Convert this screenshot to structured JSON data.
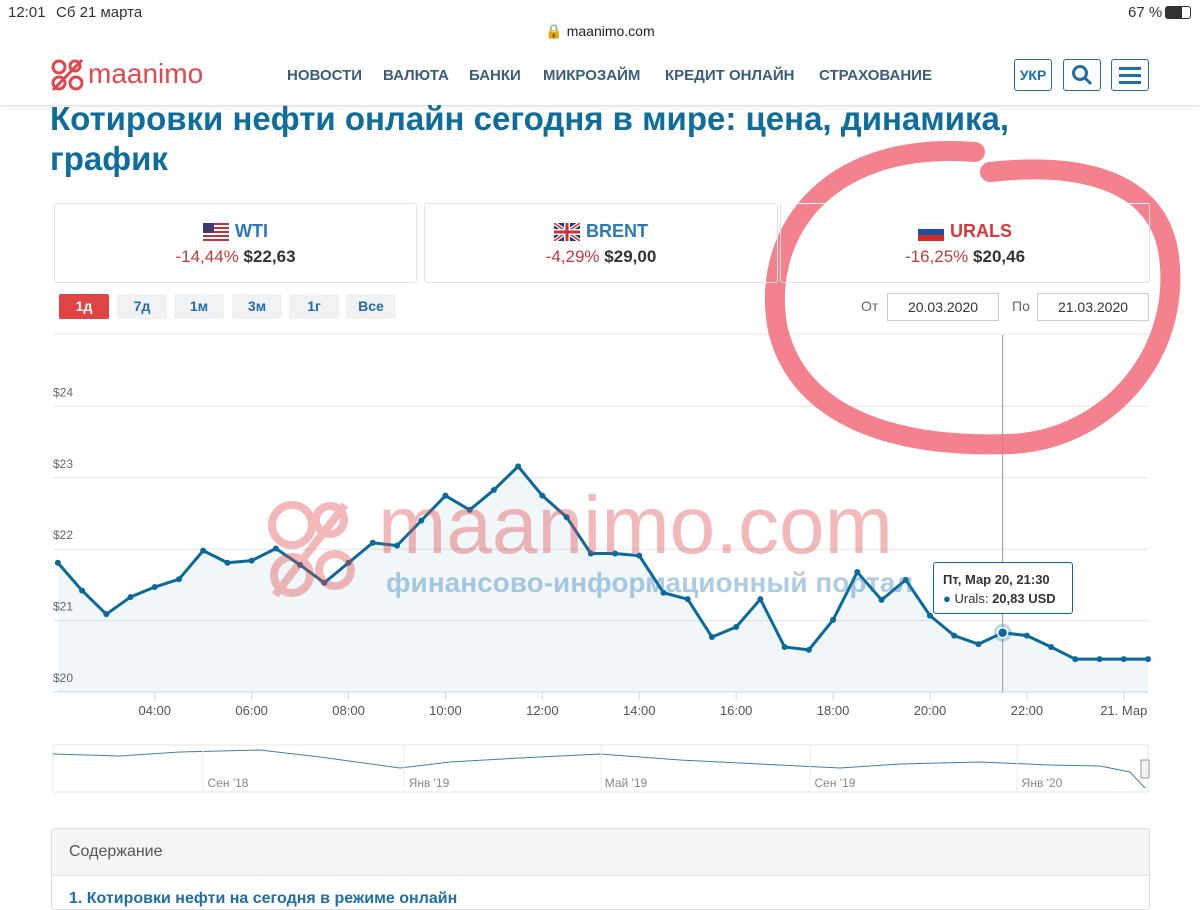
{
  "status_bar": {
    "time": "12:01",
    "date": "Сб 21 марта",
    "url": "maanimo.com",
    "battery": "67 %"
  },
  "header": {
    "logo": "maanimo",
    "nav": [
      "НОВОСТИ",
      "ВАЛЮТА",
      "БАНКИ",
      "МИКРОЗАЙМ",
      "КРЕДИТ ОНЛАЙН",
      "СТРАХОВАНИЕ"
    ],
    "lang": "УКР"
  },
  "title": "Котировки нефти онлайн сегодня в мире: цена, динамика, график",
  "quotes": [
    {
      "name": "WTI",
      "change": "-14,44%",
      "price": "$22,63"
    },
    {
      "name": "BRENT",
      "change": "-4,29%",
      "price": "$29,00"
    },
    {
      "name": "URALS",
      "change": "-16,25%",
      "price": "$20,46"
    }
  ],
  "ranges": [
    "1д",
    "7д",
    "1м",
    "3м",
    "1г",
    "Все"
  ],
  "date_from": {
    "label": "От",
    "value": "20.03.2020"
  },
  "date_to": {
    "label": "По",
    "value": "21.03.2020"
  },
  "chart": {
    "type": "line",
    "x": [
      2,
      2.5,
      3,
      3.5,
      4,
      4.5,
      5,
      5.5,
      6,
      6.5,
      7,
      7.5,
      8,
      8.5,
      9,
      9.5,
      10,
      10.5,
      11,
      11.5,
      12,
      12.5,
      13,
      13.5,
      14,
      14.5,
      15,
      15.5,
      16,
      16.5,
      17,
      17.5,
      18,
      18.5,
      19,
      19.5,
      20,
      20.5,
      21,
      21.5,
      22,
      22.5,
      23,
      23.5,
      24,
      24.5
    ],
    "series": [
      {
        "name": "Urals",
        "color": "#0b6a99",
        "values": [
          21.81,
          21.42,
          21.09,
          21.33,
          21.47,
          21.58,
          21.98,
          21.81,
          21.84,
          22.01,
          21.78,
          21.53,
          21.81,
          22.09,
          22.05,
          22.4,
          22.75,
          22.55,
          22.83,
          23.16,
          22.75,
          22.45,
          21.94,
          21.94,
          21.91,
          21.39,
          21.3,
          20.77,
          20.91,
          21.3,
          20.63,
          20.59,
          21.01,
          21.68,
          21.29,
          21.57,
          21.07,
          20.79,
          20.67,
          20.83,
          20.79,
          20.63,
          20.46,
          20.46,
          20.46,
          20.46
        ]
      }
    ],
    "xlim": [
      1.9,
      24.5
    ],
    "ylim": [
      20,
      25
    ],
    "xticks": [
      {
        "value": 4,
        "label": "04:00"
      },
      {
        "value": 6,
        "label": "06:00"
      },
      {
        "value": 8,
        "label": "08:00"
      },
      {
        "value": 10,
        "label": "10:00"
      },
      {
        "value": 12,
        "label": "12:00"
      },
      {
        "value": 14,
        "label": "14:00"
      },
      {
        "value": 16,
        "label": "16:00"
      },
      {
        "value": 18,
        "label": "18:00"
      },
      {
        "value": 20,
        "label": "20:00"
      },
      {
        "value": 22,
        "label": "22:00"
      },
      {
        "value": 24,
        "label": "21. Мар"
      }
    ],
    "yticks": [
      {
        "value": 20,
        "label": "$20"
      },
      {
        "value": 21,
        "label": "$21"
      },
      {
        "value": 22,
        "label": "$22"
      },
      {
        "value": 23,
        "label": "$23"
      },
      {
        "value": 24,
        "label": "$24"
      }
    ],
    "grid": true,
    "tooltip": {
      "title": "Пт, Мар 20, 21:30",
      "series": "Urals:",
      "value": "20,83 USD"
    }
  },
  "watermark": {
    "brand": "maanimo.com",
    "tagline": "финансово-информационный портал"
  },
  "navigator": {
    "labels": [
      "Сен '18",
      "Янв '19",
      "Май '19",
      "Сен '19",
      "Янв '20"
    ]
  },
  "contents": {
    "title": "Содержание",
    "items": [
      "1. Котировки нефти на сегодня в режиме онлайн"
    ]
  }
}
